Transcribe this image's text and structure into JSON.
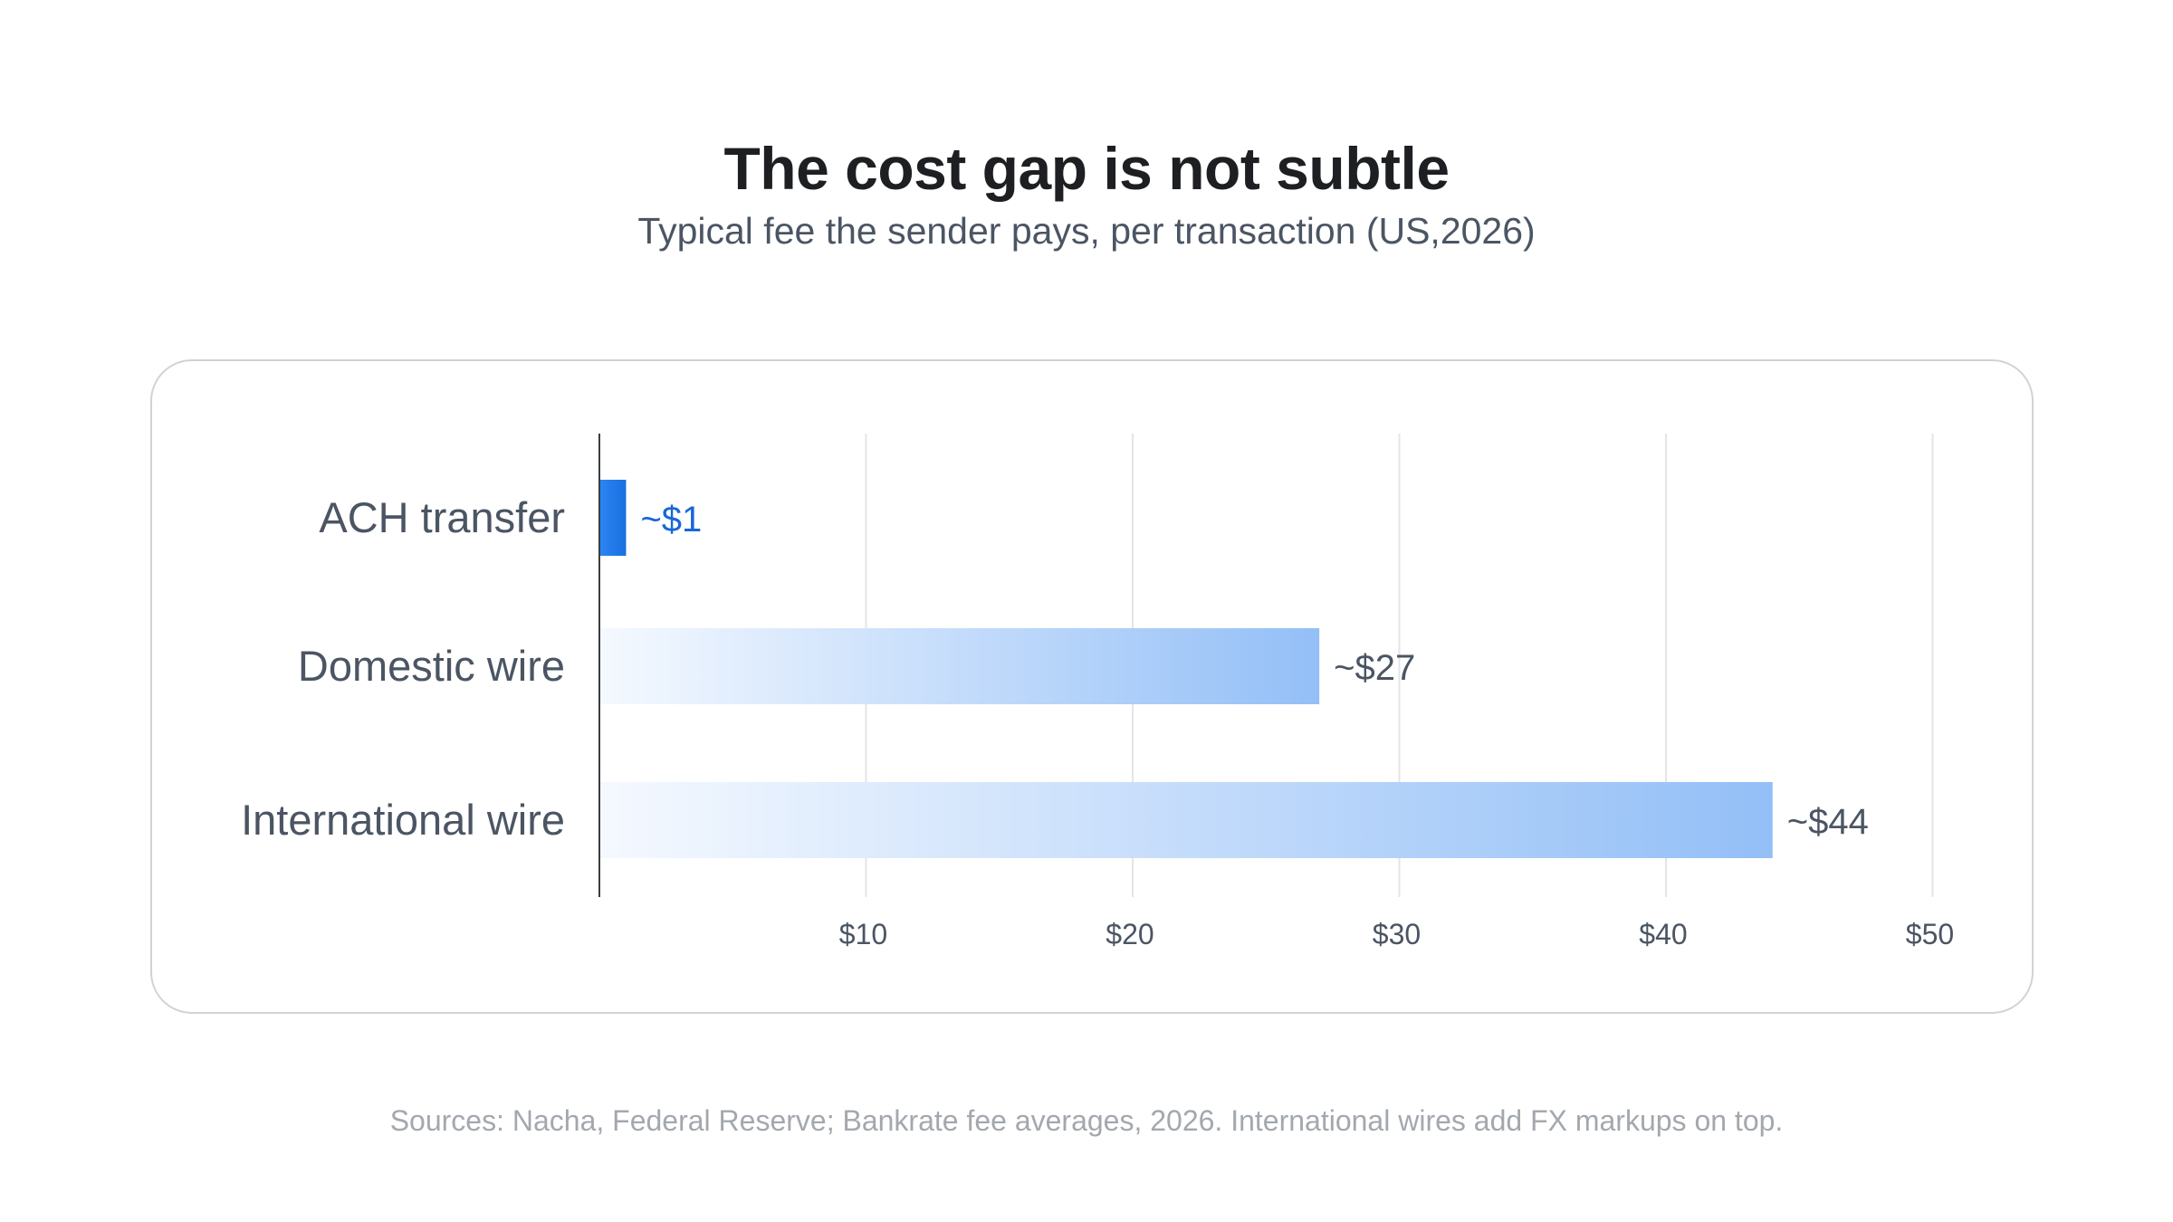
{
  "header": {
    "title": "The cost gap is not subtle",
    "subtitle": "Typical fee the sender pays, per transaction (US,2026)"
  },
  "footer": {
    "source": "Sources: Nacha, Federal Reserve; Bankrate fee averages, 2026. International wires add FX markups on top."
  },
  "chart_data": {
    "type": "bar",
    "orientation": "horizontal",
    "categories": [
      "ACH transfer",
      "Domestic wire",
      "International wire"
    ],
    "values": [
      1,
      27,
      44
    ],
    "data_labels": [
      "~$1",
      "~$27",
      "~$44"
    ],
    "x_ticks": [
      10,
      20,
      30,
      40,
      50
    ],
    "x_tick_labels": [
      "$10",
      "$20",
      "$30",
      "$40",
      "$50"
    ],
    "xlim": [
      0,
      50
    ],
    "grid": true,
    "colors": {
      "highlight_bar": "#1a6fe0",
      "highlight_label": "#1a66d9",
      "bar_gradient_start": "#f5f9ff",
      "bar_gradient_end": "#93bff7",
      "label_text": "#4b5563",
      "gridline": "#e3e5e8",
      "axis": "#3a3d41"
    }
  }
}
